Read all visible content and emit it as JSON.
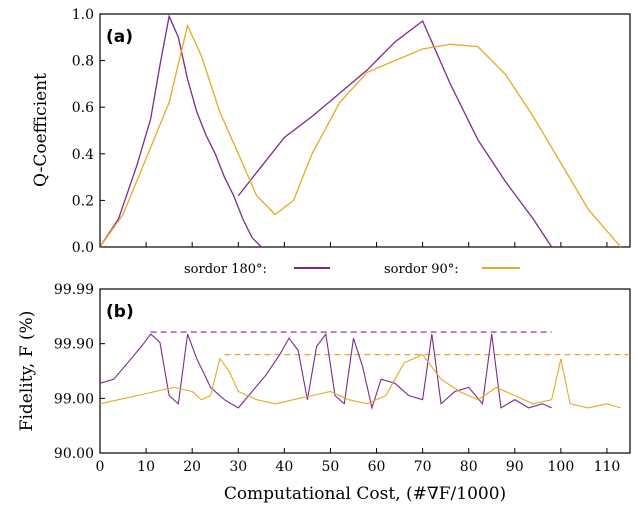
{
  "colors": {
    "sordor180": "#7b2a8f",
    "sordor90": "#e8a824",
    "axis": "#000000"
  },
  "legend": {
    "s180": "sordor 180°:",
    "s90": "sordor 90°:"
  },
  "chart_data": [
    {
      "panel": "(a)",
      "type": "line",
      "ylabel": "Q-Coefficient",
      "ylim": [
        0.0,
        1.0
      ],
      "xlim": [
        0,
        115
      ],
      "yticks": [
        "0.0",
        "0.2",
        "0.4",
        "0.6",
        "0.8",
        "1.0"
      ],
      "series": [
        {
          "name": "sordor 180°",
          "color": "#7b2a8f",
          "x": [
            0,
            4,
            8,
            11,
            13,
            15,
            17,
            19,
            21,
            23,
            25,
            27,
            29,
            31,
            33,
            35
          ],
          "y": [
            0,
            0.12,
            0.35,
            0.55,
            0.78,
            0.99,
            0.9,
            0.72,
            0.58,
            0.48,
            0.4,
            0.3,
            0.22,
            0.12,
            0.04,
            0.0
          ]
        },
        {
          "name": "sordor 180° branch",
          "color": "#7b2a8f",
          "x": [
            30,
            34,
            40,
            46,
            52,
            58,
            64,
            70,
            76,
            82,
            88,
            94,
            98
          ],
          "y": [
            0.22,
            0.32,
            0.47,
            0.56,
            0.66,
            0.76,
            0.88,
            0.97,
            0.7,
            0.46,
            0.28,
            0.12,
            0.0
          ]
        },
        {
          "name": "sordor 90°",
          "color": "#e8a824",
          "x": [
            0,
            5,
            10,
            15,
            19,
            22,
            26,
            30,
            34,
            38,
            42,
            46,
            52,
            58,
            64,
            70,
            76,
            82,
            88,
            94,
            100,
            106,
            113
          ],
          "y": [
            0,
            0.14,
            0.38,
            0.62,
            0.95,
            0.82,
            0.58,
            0.4,
            0.22,
            0.14,
            0.2,
            0.4,
            0.62,
            0.75,
            0.8,
            0.85,
            0.87,
            0.86,
            0.74,
            0.56,
            0.36,
            0.16,
            0.0
          ]
        }
      ]
    },
    {
      "panel": "(b)",
      "type": "line",
      "ylabel": "Fidelity, F (%)",
      "xlabel": "Computational Cost, (#∇F/1000)",
      "ylim": [
        0,
        4
      ],
      "yticks": [
        "90.00",
        "99.00",
        "99.90",
        "99.99"
      ],
      "xticks": [
        "0",
        "10",
        "20",
        "30",
        "40",
        "50",
        "60",
        "70",
        "80",
        "90",
        "100",
        "110"
      ],
      "series": [
        {
          "name": "sordor 180°",
          "color": "#7b2a8f",
          "x": [
            0,
            3,
            6,
            9,
            11,
            13,
            15,
            17,
            19,
            21,
            24,
            27,
            30,
            33,
            36,
            39,
            41,
            43,
            45,
            47,
            49,
            51,
            53,
            55,
            57,
            59,
            61,
            64,
            67,
            70,
            72,
            74,
            77,
            80,
            83,
            85,
            87,
            90,
            93,
            96,
            98
          ],
          "y": [
            1.7,
            1.8,
            2.2,
            2.6,
            2.9,
            2.7,
            1.4,
            1.2,
            2.9,
            2.3,
            1.6,
            1.3,
            1.1,
            1.5,
            1.9,
            2.4,
            2.8,
            2.5,
            1.3,
            2.6,
            2.9,
            1.4,
            1.2,
            2.8,
            2.1,
            1.1,
            1.8,
            1.7,
            1.4,
            1.3,
            2.9,
            1.2,
            1.5,
            1.6,
            1.2,
            2.9,
            1.1,
            1.3,
            1.1,
            1.2,
            1.1
          ]
        },
        {
          "name": "sordor 90°",
          "color": "#e8a824",
          "x": [
            0,
            4,
            8,
            12,
            16,
            20,
            22,
            24,
            26,
            28,
            30,
            34,
            38,
            42,
            46,
            50,
            54,
            58,
            62,
            66,
            70,
            74,
            78,
            82,
            86,
            90,
            94,
            98,
            100,
            102,
            106,
            110,
            113
          ],
          "y": [
            1.2,
            1.3,
            1.4,
            1.5,
            1.6,
            1.5,
            1.3,
            1.4,
            2.3,
            2.0,
            1.5,
            1.3,
            1.2,
            1.3,
            1.4,
            1.5,
            1.3,
            1.2,
            1.4,
            2.2,
            2.4,
            1.8,
            1.5,
            1.3,
            1.6,
            1.4,
            1.2,
            1.3,
            2.3,
            1.2,
            1.1,
            1.2,
            1.1
          ]
        }
      ],
      "reference_lines": [
        {
          "color": "#7b2a8f",
          "x": [
            11,
            98
          ],
          "y": 2.95
        },
        {
          "color": "#e8a824",
          "x": [
            27,
            115
          ],
          "y": 2.4
        }
      ]
    }
  ]
}
